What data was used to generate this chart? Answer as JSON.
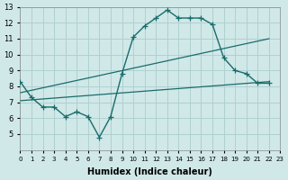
{
  "xlabel": "Humidex (Indice chaleur)",
  "ylabel": "",
  "bg_color": "#d0e8e8",
  "line_color": "#1a6b6b",
  "grid_color": "#b0d0d0",
  "x_min": 0,
  "x_max": 23,
  "y_min": 4,
  "y_max": 13,
  "line1_x": [
    0,
    1,
    2,
    3,
    4,
    5,
    6,
    7,
    8,
    9,
    10,
    11,
    12,
    13,
    14,
    15,
    16,
    17,
    18,
    19,
    20,
    21,
    22
  ],
  "line1_y": [
    8.3,
    7.3,
    6.7,
    6.7,
    6.1,
    6.4,
    6.1,
    4.8,
    6.1,
    8.8,
    11.1,
    11.8,
    12.3,
    12.8,
    12.3,
    12.3,
    12.3,
    11.9,
    9.8,
    9.0,
    8.8,
    8.2,
    8.2
  ],
  "line2_x": [
    0,
    22
  ],
  "line2_y": [
    7.6,
    11.0
  ],
  "line3_x": [
    0,
    22
  ],
  "line3_y": [
    7.1,
    8.3
  ],
  "x_ticks": [
    0,
    1,
    2,
    3,
    4,
    5,
    6,
    7,
    8,
    9,
    10,
    11,
    12,
    13,
    14,
    15,
    16,
    17,
    18,
    19,
    20,
    21,
    22,
    23
  ],
  "y_ticks": [
    5,
    6,
    7,
    8,
    9,
    10,
    11,
    12,
    13
  ]
}
